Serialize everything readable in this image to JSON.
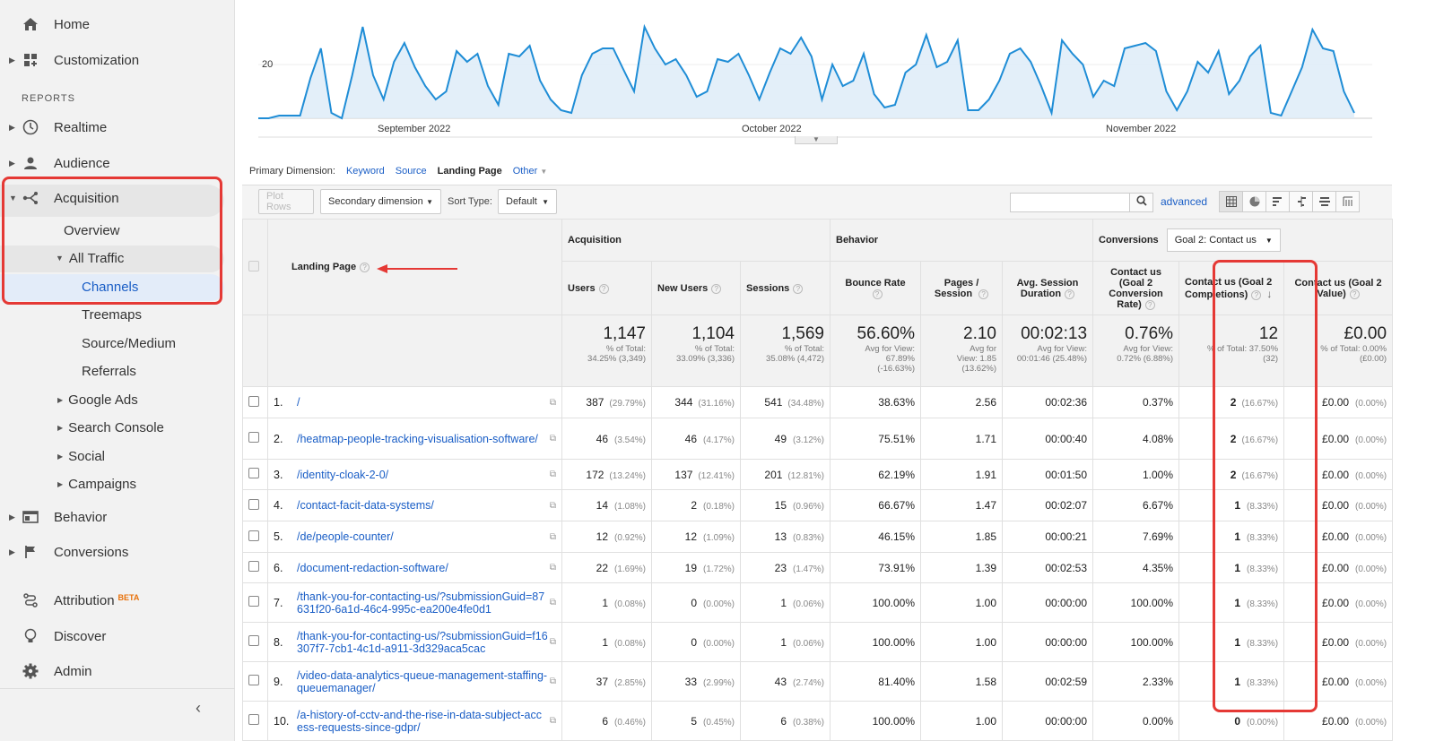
{
  "sidebar": {
    "home": "Home",
    "customization": "Customization",
    "reports_label": "REPORTS",
    "realtime": "Realtime",
    "audience": "Audience",
    "acquisition": "Acquisition",
    "overview": "Overview",
    "all_traffic": "All Traffic",
    "channels": "Channels",
    "treemaps": "Treemaps",
    "source_medium": "Source/Medium",
    "referrals": "Referrals",
    "google_ads": "Google Ads",
    "search_console": "Search Console",
    "social": "Social",
    "campaigns": "Campaigns",
    "behavior": "Behavior",
    "conversions": "Conversions",
    "attribution": "Attribution",
    "beta": "BETA",
    "discover": "Discover",
    "admin": "Admin"
  },
  "chart": {
    "y_label": "20",
    "months": [
      "September 2022",
      "October 2022",
      "November 2022"
    ],
    "line_color": "#1f8dd6",
    "fill_color": "#dcebf7"
  },
  "chart_data": {
    "type": "area",
    "ylabel": "",
    "yticks": [
      20
    ],
    "x_labels": [
      "September 2022",
      "October 2022",
      "November 2022"
    ],
    "series": [
      {
        "values": [
          0,
          0,
          1,
          1,
          1,
          15,
          26,
          2,
          0,
          16,
          34,
          16,
          7,
          21,
          28,
          19,
          12,
          7,
          10,
          25,
          21,
          24,
          12,
          5,
          24,
          23,
          27,
          14,
          7,
          3,
          2,
          16,
          24,
          26,
          26,
          18,
          10,
          34,
          26,
          20,
          22,
          16,
          8,
          10,
          22,
          21,
          24,
          16,
          7,
          17,
          26,
          24,
          30,
          23,
          7,
          20,
          12,
          14,
          24,
          9,
          4,
          5,
          17,
          20,
          31,
          19,
          21,
          29,
          3,
          3,
          7,
          14,
          24,
          26,
          21,
          12,
          2,
          29,
          24,
          20,
          8,
          14,
          12,
          26,
          27,
          28,
          25,
          10,
          3,
          10,
          21,
          17,
          25,
          9,
          14,
          23,
          27,
          2,
          1,
          10,
          19,
          33,
          26,
          25,
          10,
          2
        ]
      }
    ]
  },
  "primary_dimension": {
    "label": "Primary Dimension:",
    "options": [
      "Keyword",
      "Source",
      "Landing Page",
      "Other"
    ],
    "active": "Landing Page"
  },
  "toolbar": {
    "plot_rows": "Plot Rows",
    "secondary_dimension": "Secondary dimension",
    "sort_type_label": "Sort Type:",
    "sort_type_value": "Default",
    "advanced": "advanced"
  },
  "table": {
    "landing_page_header": "Landing Page",
    "group_acquisition": "Acquisition",
    "group_behavior": "Behavior",
    "group_conversions": "Conversions",
    "goal_select": "Goal 2: Contact us",
    "columns": [
      "Users",
      "New Users",
      "Sessions",
      "Bounce Rate",
      "Pages / Session",
      "Avg. Session Duration",
      "Contact us (Goal 2 Conversion Rate)",
      "Contact us (Goal 2 Completions)",
      "Contact us (Goal 2 Value)"
    ],
    "totals": [
      {
        "big": "1,147",
        "l1": "% of Total:",
        "l2": "34.25% (3,349)",
        "l3": ""
      },
      {
        "big": "1,104",
        "l1": "% of Total:",
        "l2": "33.09% (3,336)",
        "l3": ""
      },
      {
        "big": "1,569",
        "l1": "% of Total:",
        "l2": "35.08% (4,472)",
        "l3": ""
      },
      {
        "big": "56.60%",
        "l1": "Avg for View:",
        "l2": "67.89%",
        "l3": "(-16.63%)"
      },
      {
        "big": "2.10",
        "l1": "Avg for",
        "l2": "View: 1.85",
        "l3": "(13.62%)"
      },
      {
        "big": "00:02:13",
        "l1": "Avg for View:",
        "l2": "00:01:46 (25.48%)",
        "l3": ""
      },
      {
        "big": "0.76%",
        "l1": "Avg for View:",
        "l2": "0.72% (6.88%)",
        "l3": ""
      },
      {
        "big": "12",
        "l1": "% of Total: 37.50%",
        "l2": "(32)",
        "l3": ""
      },
      {
        "big": "£0.00",
        "l1": "% of Total: 0.00%",
        "l2": "(£0.00)",
        "l3": ""
      }
    ],
    "rows": [
      {
        "idx": "1.",
        "page": "/",
        "users": "387",
        "users_pct": "(29.79%)",
        "new": "344",
        "new_pct": "(31.16%)",
        "sessions": "541",
        "sessions_pct": "(34.48%)",
        "bounce": "38.63%",
        "pps": "2.56",
        "dur": "00:02:36",
        "cr": "0.37%",
        "comp": "2",
        "comp_pct": "(16.67%)",
        "val": "£0.00",
        "val_pct": "(0.00%)"
      },
      {
        "idx": "2.",
        "page": "/heatmap-people-tracking-visualisation-software/",
        "users": "46",
        "users_pct": "(3.54%)",
        "new": "46",
        "new_pct": "(4.17%)",
        "sessions": "49",
        "sessions_pct": "(3.12%)",
        "bounce": "75.51%",
        "pps": "1.71",
        "dur": "00:00:40",
        "cr": "4.08%",
        "comp": "2",
        "comp_pct": "(16.67%)",
        "val": "£0.00",
        "val_pct": "(0.00%)"
      },
      {
        "idx": "3.",
        "page": "/identity-cloak-2-0/",
        "users": "172",
        "users_pct": "(13.24%)",
        "new": "137",
        "new_pct": "(12.41%)",
        "sessions": "201",
        "sessions_pct": "(12.81%)",
        "bounce": "62.19%",
        "pps": "1.91",
        "dur": "00:01:50",
        "cr": "1.00%",
        "comp": "2",
        "comp_pct": "(16.67%)",
        "val": "£0.00",
        "val_pct": "(0.00%)"
      },
      {
        "idx": "4.",
        "page": "/contact-facit-data-systems/",
        "users": "14",
        "users_pct": "(1.08%)",
        "new": "2",
        "new_pct": "(0.18%)",
        "sessions": "15",
        "sessions_pct": "(0.96%)",
        "bounce": "66.67%",
        "pps": "1.47",
        "dur": "00:02:07",
        "cr": "6.67%",
        "comp": "1",
        "comp_pct": "(8.33%)",
        "val": "£0.00",
        "val_pct": "(0.00%)"
      },
      {
        "idx": "5.",
        "page": "/de/people-counter/",
        "users": "12",
        "users_pct": "(0.92%)",
        "new": "12",
        "new_pct": "(1.09%)",
        "sessions": "13",
        "sessions_pct": "(0.83%)",
        "bounce": "46.15%",
        "pps": "1.85",
        "dur": "00:00:21",
        "cr": "7.69%",
        "comp": "1",
        "comp_pct": "(8.33%)",
        "val": "£0.00",
        "val_pct": "(0.00%)"
      },
      {
        "idx": "6.",
        "page": "/document-redaction-software/",
        "users": "22",
        "users_pct": "(1.69%)",
        "new": "19",
        "new_pct": "(1.72%)",
        "sessions": "23",
        "sessions_pct": "(1.47%)",
        "bounce": "73.91%",
        "pps": "1.39",
        "dur": "00:02:53",
        "cr": "4.35%",
        "comp": "1",
        "comp_pct": "(8.33%)",
        "val": "£0.00",
        "val_pct": "(0.00%)"
      },
      {
        "idx": "7.",
        "page": "/thank-you-for-contacting-us/?submissionGuid=87631f20-6a1d-46c4-995c-ea200e4fe0d1",
        "users": "1",
        "users_pct": "(0.08%)",
        "new": "0",
        "new_pct": "(0.00%)",
        "sessions": "1",
        "sessions_pct": "(0.06%)",
        "bounce": "100.00%",
        "pps": "1.00",
        "dur": "00:00:00",
        "cr": "100.00%",
        "comp": "1",
        "comp_pct": "(8.33%)",
        "val": "£0.00",
        "val_pct": "(0.00%)"
      },
      {
        "idx": "8.",
        "page": "/thank-you-for-contacting-us/?submissionGuid=f16307f7-7cb1-4c1d-a911-3d329aca5cac",
        "users": "1",
        "users_pct": "(0.08%)",
        "new": "0",
        "new_pct": "(0.00%)",
        "sessions": "1",
        "sessions_pct": "(0.06%)",
        "bounce": "100.00%",
        "pps": "1.00",
        "dur": "00:00:00",
        "cr": "100.00%",
        "comp": "1",
        "comp_pct": "(8.33%)",
        "val": "£0.00",
        "val_pct": "(0.00%)"
      },
      {
        "idx": "9.",
        "page": "/video-data-analytics-queue-management-staffing-queuemanager/",
        "users": "37",
        "users_pct": "(2.85%)",
        "new": "33",
        "new_pct": "(2.99%)",
        "sessions": "43",
        "sessions_pct": "(2.74%)",
        "bounce": "81.40%",
        "pps": "1.58",
        "dur": "00:02:59",
        "cr": "2.33%",
        "comp": "1",
        "comp_pct": "(8.33%)",
        "val": "£0.00",
        "val_pct": "(0.00%)"
      },
      {
        "idx": "10.",
        "page": "/a-history-of-cctv-and-the-rise-in-data-subject-access-requests-since-gdpr/",
        "users": "6",
        "users_pct": "(0.46%)",
        "new": "5",
        "new_pct": "(0.45%)",
        "sessions": "6",
        "sessions_pct": "(0.38%)",
        "bounce": "100.00%",
        "pps": "1.00",
        "dur": "00:00:00",
        "cr": "0.00%",
        "comp": "0",
        "comp_pct": "(0.00%)",
        "val": "£0.00",
        "val_pct": "(0.00%)"
      }
    ]
  }
}
